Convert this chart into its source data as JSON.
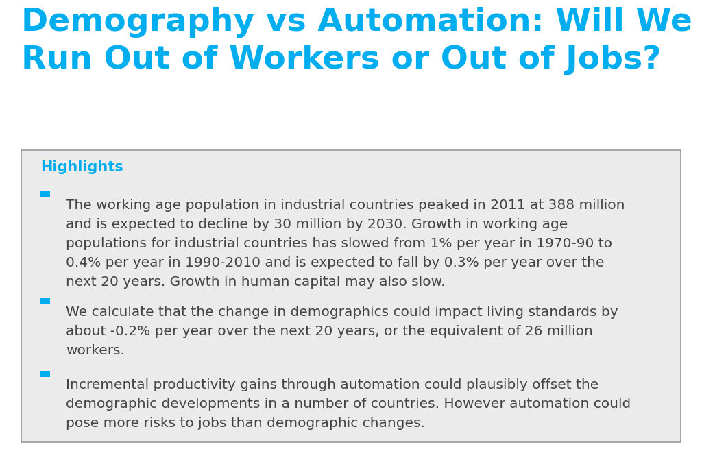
{
  "title_line1": "Demography vs Automation: Will We",
  "title_line2": "Run Out of Workers or Out of Jobs?",
  "title_color": "#00aeef",
  "highlights_label": "Highlights",
  "highlights_color": "#00aeef",
  "bullet_color": "#00aeef",
  "text_color": "#444444",
  "box_bg_color": "#ebebeb",
  "box_border_color": "#999999",
  "background_color": "#ffffff",
  "bullets": [
    "The working age population in industrial countries peaked in 2011 at 388 million\nand is expected to decline by 30 million by 2030. Growth in working age\npopulations for industrial countries has slowed from 1% per year in 1970-90 to\n0.4% per year in 1990-2010 and is expected to fall by 0.3% per year over the\nnext 20 years. Growth in human capital may also slow.",
    "We calculate that the change in demographics could impact living standards by\nabout -0.2% per year over the next 20 years, or the equivalent of 26 million\nworkers.",
    "Incremental productivity gains through automation could plausibly offset the\ndemographic developments in a number of countries. However automation could\npose more risks to jobs than demographic changes."
  ],
  "title_fontsize": 34,
  "highlights_fontsize": 15,
  "bullet_fontsize": 14.5,
  "fig_width": 10.24,
  "fig_height": 6.55,
  "dpi": 100
}
